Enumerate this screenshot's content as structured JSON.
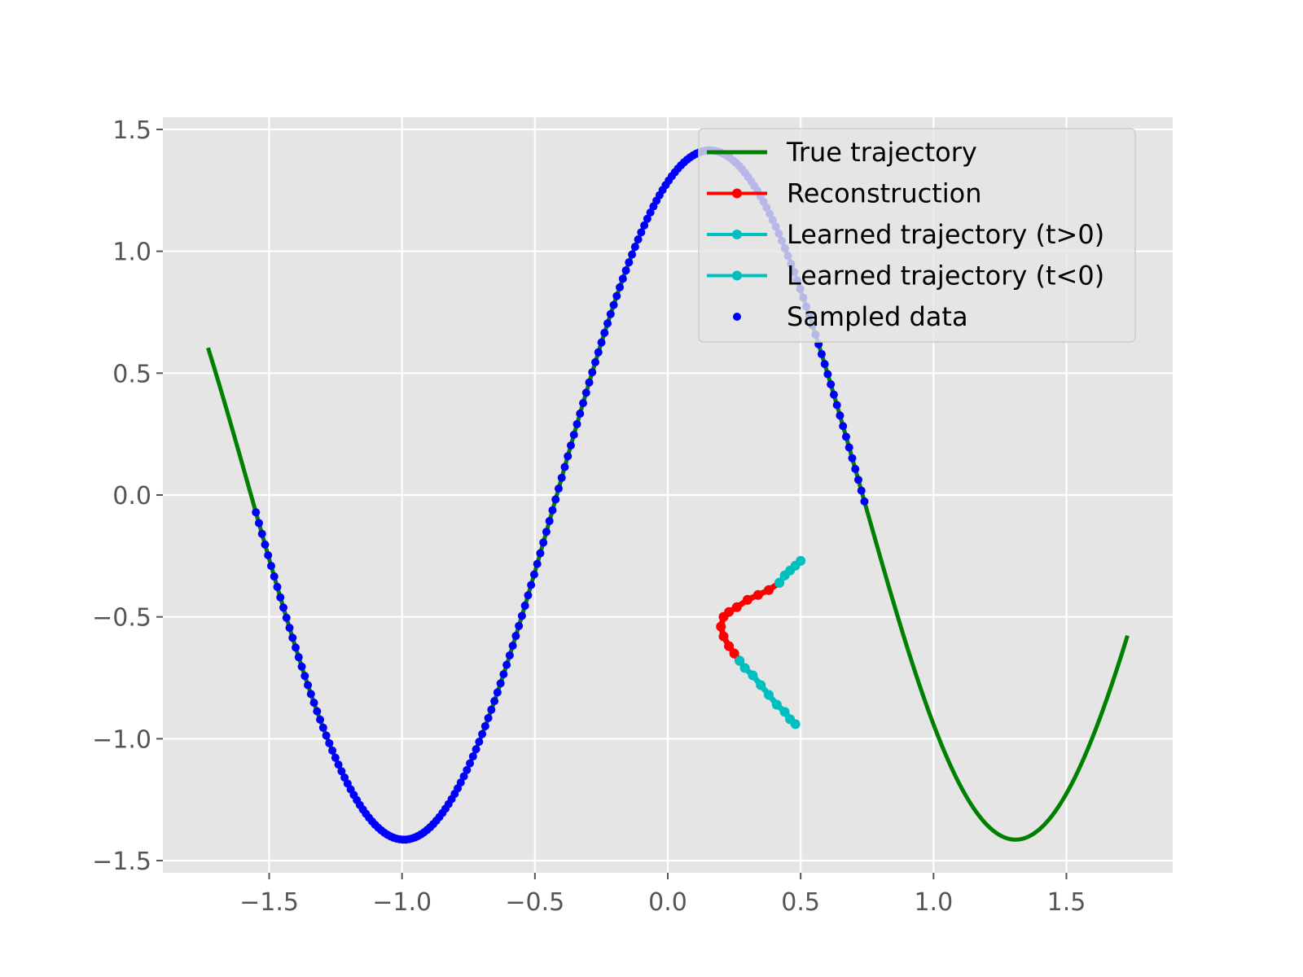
{
  "chart_data": {
    "type": "line",
    "title": "",
    "xlabel": "",
    "ylabel": "",
    "xlim": [
      -1.9,
      1.9
    ],
    "ylim": [
      -1.55,
      1.55
    ],
    "grid": true,
    "style": "ggplot",
    "x_ticks": [
      -1.5,
      -1.0,
      -0.5,
      0.0,
      0.5,
      1.0,
      1.5
    ],
    "x_tick_labels": [
      "−1.5",
      "−1.0",
      "−0.5",
      "0.0",
      "0.5",
      "1.0",
      "1.5"
    ],
    "y_ticks": [
      -1.5,
      -1.0,
      -0.5,
      0.0,
      0.5,
      1.0,
      1.5
    ],
    "y_tick_labels": [
      "−1.5",
      "−1.0",
      "−0.5",
      "0.0",
      "0.5",
      "1.0",
      "1.5"
    ],
    "legend_position": "top-right",
    "series": [
      {
        "name": "True trajectory",
        "kind": "line",
        "color": "#008000",
        "function": "y = 1.414 * sin(2.73 * x + 1.14)",
        "x_range": [
          -1.73,
          1.73
        ]
      },
      {
        "name": "Sampled data",
        "kind": "scatter",
        "color": "#0000ff",
        "function": "y = 1.414 * sin(2.73 * x + 1.14)",
        "x_range": [
          -1.55,
          0.74
        ],
        "n_points": 200
      },
      {
        "name": "Reconstruction",
        "kind": "line-markers",
        "color": "#ff0000",
        "x": [
          0.42,
          0.38,
          0.34,
          0.3,
          0.26,
          0.23,
          0.21,
          0.2,
          0.21,
          0.23,
          0.25,
          0.27
        ],
        "y": [
          -0.36,
          -0.39,
          -0.41,
          -0.43,
          -0.46,
          -0.48,
          -0.5,
          -0.54,
          -0.58,
          -0.62,
          -0.65,
          -0.68
        ]
      },
      {
        "name": "Learned trajectory (t>0)",
        "kind": "line-markers",
        "color": "#00bfbf",
        "x": [
          0.5,
          0.48,
          0.46,
          0.44,
          0.42
        ],
        "y": [
          -0.27,
          -0.29,
          -0.31,
          -0.33,
          -0.36
        ]
      },
      {
        "name": "Learned trajectory (t<0)",
        "kind": "line-markers",
        "color": "#00bfbf",
        "x": [
          0.27,
          0.29,
          0.32,
          0.35,
          0.38,
          0.41,
          0.44,
          0.46,
          0.48
        ],
        "y": [
          -0.68,
          -0.71,
          -0.74,
          -0.78,
          -0.82,
          -0.86,
          -0.89,
          -0.92,
          -0.94
        ]
      }
    ]
  }
}
